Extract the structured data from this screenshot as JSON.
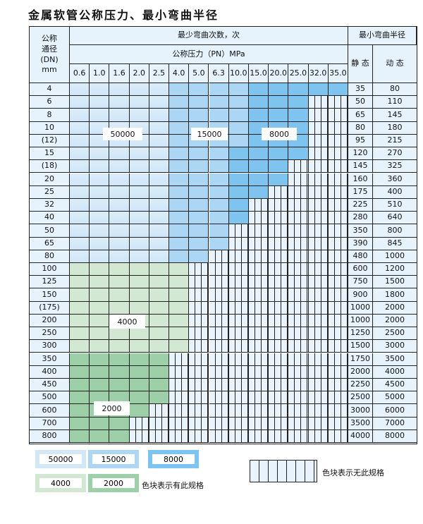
{
  "title": "金属软管公称压力、最小弯曲半径",
  "header": {
    "dn_label": "公称\n通径\n(DN)\nmm",
    "cycles_label": "最少弯曲次数，次",
    "pressure_label": "公称压力（PN）MPa",
    "radius_label": "最小弯曲半径",
    "static_label": "静 态",
    "dynamic_label": "动 态",
    "pressures": [
      "0.6",
      "1.0",
      "1.6",
      "2.0",
      "2.5",
      "4.0",
      "5.0",
      "6.3",
      "10.0",
      "15.0",
      "20.0",
      "25.0",
      "32.0",
      "35.0"
    ]
  },
  "region_codes": {
    "A": "50000",
    "B": "15000",
    "C": "8000",
    "D": "4000",
    "E": "2000",
    "X": "none"
  },
  "colors": {
    "A": "#d6ebf8",
    "B": "#acd6f3",
    "C": "#7fc4ee",
    "D": "#d3e8d3",
    "E": "#9dd0a9",
    "X": "#e9f3fb"
  },
  "rows": [
    {
      "dn": "4",
      "static": "35",
      "dynamic": "80",
      "cells": "AAAAABBBBCCCCC"
    },
    {
      "dn": "6",
      "static": "50",
      "dynamic": "110",
      "cells": "AAAAABBBBCCCXX"
    },
    {
      "dn": "8",
      "static": "65",
      "dynamic": "145",
      "cells": "AAAAABBBBCCCXX"
    },
    {
      "dn": "10",
      "static": "80",
      "dynamic": "180",
      "cells": "AAAAABBBBCCCXX"
    },
    {
      "dn": "(12)",
      "static": "95",
      "dynamic": "215",
      "cells": "AAAAABBBBCCCXX"
    },
    {
      "dn": "15",
      "static": "120",
      "dynamic": "270",
      "cells": "AAAAABBBCCCCXX"
    },
    {
      "dn": "(18)",
      "static": "145",
      "dynamic": "325",
      "cells": "AAAAABBBCCCXXX"
    },
    {
      "dn": "20",
      "static": "160",
      "dynamic": "360",
      "cells": "AAAAABBBCCCXXX"
    },
    {
      "dn": "25",
      "static": "175",
      "dynamic": "400",
      "cells": "AAAAABBBCCXXXX"
    },
    {
      "dn": "32",
      "static": "225",
      "dynamic": "510",
      "cells": "AAAAABBBCXXXXX"
    },
    {
      "dn": "40",
      "static": "280",
      "dynamic": "640",
      "cells": "AAAAABBBCXXXXX"
    },
    {
      "dn": "50",
      "static": "350",
      "dynamic": "800",
      "cells": "AAAAABBBXXXXXX"
    },
    {
      "dn": "65",
      "static": "390",
      "dynamic": "845",
      "cells": "AAAAABBBXXXXXX"
    },
    {
      "dn": "80",
      "static": "480",
      "dynamic": "1000",
      "cells": "AAAAABBXXXXXXX"
    },
    {
      "dn": "100",
      "static": "600",
      "dynamic": "1200",
      "cells": "DDDDDDXXXXXXXX"
    },
    {
      "dn": "125",
      "static": "750",
      "dynamic": "1500",
      "cells": "DDDDDDXXXXXXXX"
    },
    {
      "dn": "150",
      "static": "900",
      "dynamic": "1800",
      "cells": "DDDDDDXXXXXXXX"
    },
    {
      "dn": "(175)",
      "static": "1000",
      "dynamic": "2000",
      "cells": "DDDDDDXXXXXXXX"
    },
    {
      "dn": "200",
      "static": "1000",
      "dynamic": "2000",
      "cells": "DDDDDDXXXXXXXX"
    },
    {
      "dn": "250",
      "static": "1250",
      "dynamic": "2500",
      "cells": "DDDDDDXXXXXXXX"
    },
    {
      "dn": "300",
      "static": "1500",
      "dynamic": "3000",
      "cells": "DDDDDDXXXXXXXX"
    },
    {
      "dn": "350",
      "static": "1750",
      "dynamic": "3500",
      "cells": "EEEEEXXXXXXXXX"
    },
    {
      "dn": "400",
      "static": "2000",
      "dynamic": "4000",
      "cells": "EEEEEXXXXXXXXX"
    },
    {
      "dn": "450",
      "static": "2250",
      "dynamic": "4500",
      "cells": "EEEEEXXXXXXXXX"
    },
    {
      "dn": "500",
      "static": "2500",
      "dynamic": "5000",
      "cells": "EEEEEXXXXXXXXX"
    },
    {
      "dn": "600",
      "static": "3000",
      "dynamic": "6000",
      "cells": "EEEEXXXXXXXXXX"
    },
    {
      "dn": "700",
      "static": "3500",
      "dynamic": "7000",
      "cells": "EEEXXXXXXXXXXX"
    },
    {
      "dn": "800",
      "static": "4000",
      "dynamic": "8000",
      "cells": "EEEXXXXXXXXXXX"
    }
  ],
  "region_labels": {
    "a": "50000",
    "b": "15000",
    "c": "8000",
    "d": "4000",
    "e": "2000"
  },
  "legend": {
    "items": [
      "50000",
      "15000",
      "8000",
      "4000",
      "2000"
    ],
    "has_spec_text": "色块表示有此规格",
    "no_spec_text": "色块表示无此规格"
  }
}
